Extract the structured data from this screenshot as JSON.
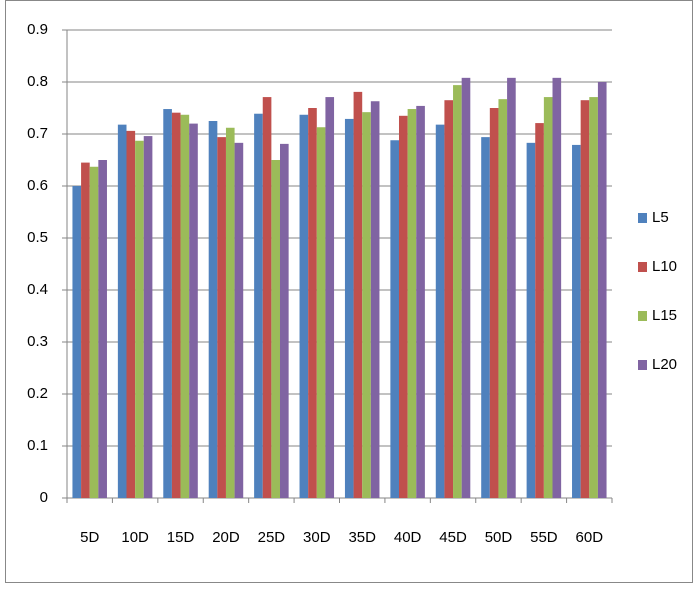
{
  "chart_data": {
    "type": "bar",
    "categories": [
      "5D",
      "10D",
      "15D",
      "20D",
      "25D",
      "30D",
      "35D",
      "40D",
      "45D",
      "50D",
      "55D",
      "60D"
    ],
    "series": [
      {
        "name": "L5",
        "color": "#4f81bd",
        "values": [
          0.6,
          0.718,
          0.748,
          0.725,
          0.739,
          0.737,
          0.729,
          0.688,
          0.718,
          0.694,
          0.683,
          0.679
        ]
      },
      {
        "name": "L10",
        "color": "#c0504d",
        "values": [
          0.645,
          0.706,
          0.741,
          0.694,
          0.771,
          0.75,
          0.781,
          0.735,
          0.765,
          0.75,
          0.721,
          0.765
        ]
      },
      {
        "name": "L15",
        "color": "#9bbb59",
        "values": [
          0.637,
          0.687,
          0.737,
          0.712,
          0.65,
          0.713,
          0.742,
          0.748,
          0.794,
          0.767,
          0.771,
          0.771
        ]
      },
      {
        "name": "L20",
        "color": "#8064a2",
        "values": [
          0.65,
          0.696,
          0.72,
          0.683,
          0.681,
          0.771,
          0.763,
          0.754,
          0.808,
          0.808,
          0.808,
          0.8
        ]
      }
    ],
    "ylim": [
      0,
      0.9
    ],
    "yticks": [
      0,
      0.1,
      0.2,
      0.3,
      0.4,
      0.5,
      0.6,
      0.7,
      0.8,
      0.9
    ],
    "grid": true,
    "legend": "right"
  }
}
